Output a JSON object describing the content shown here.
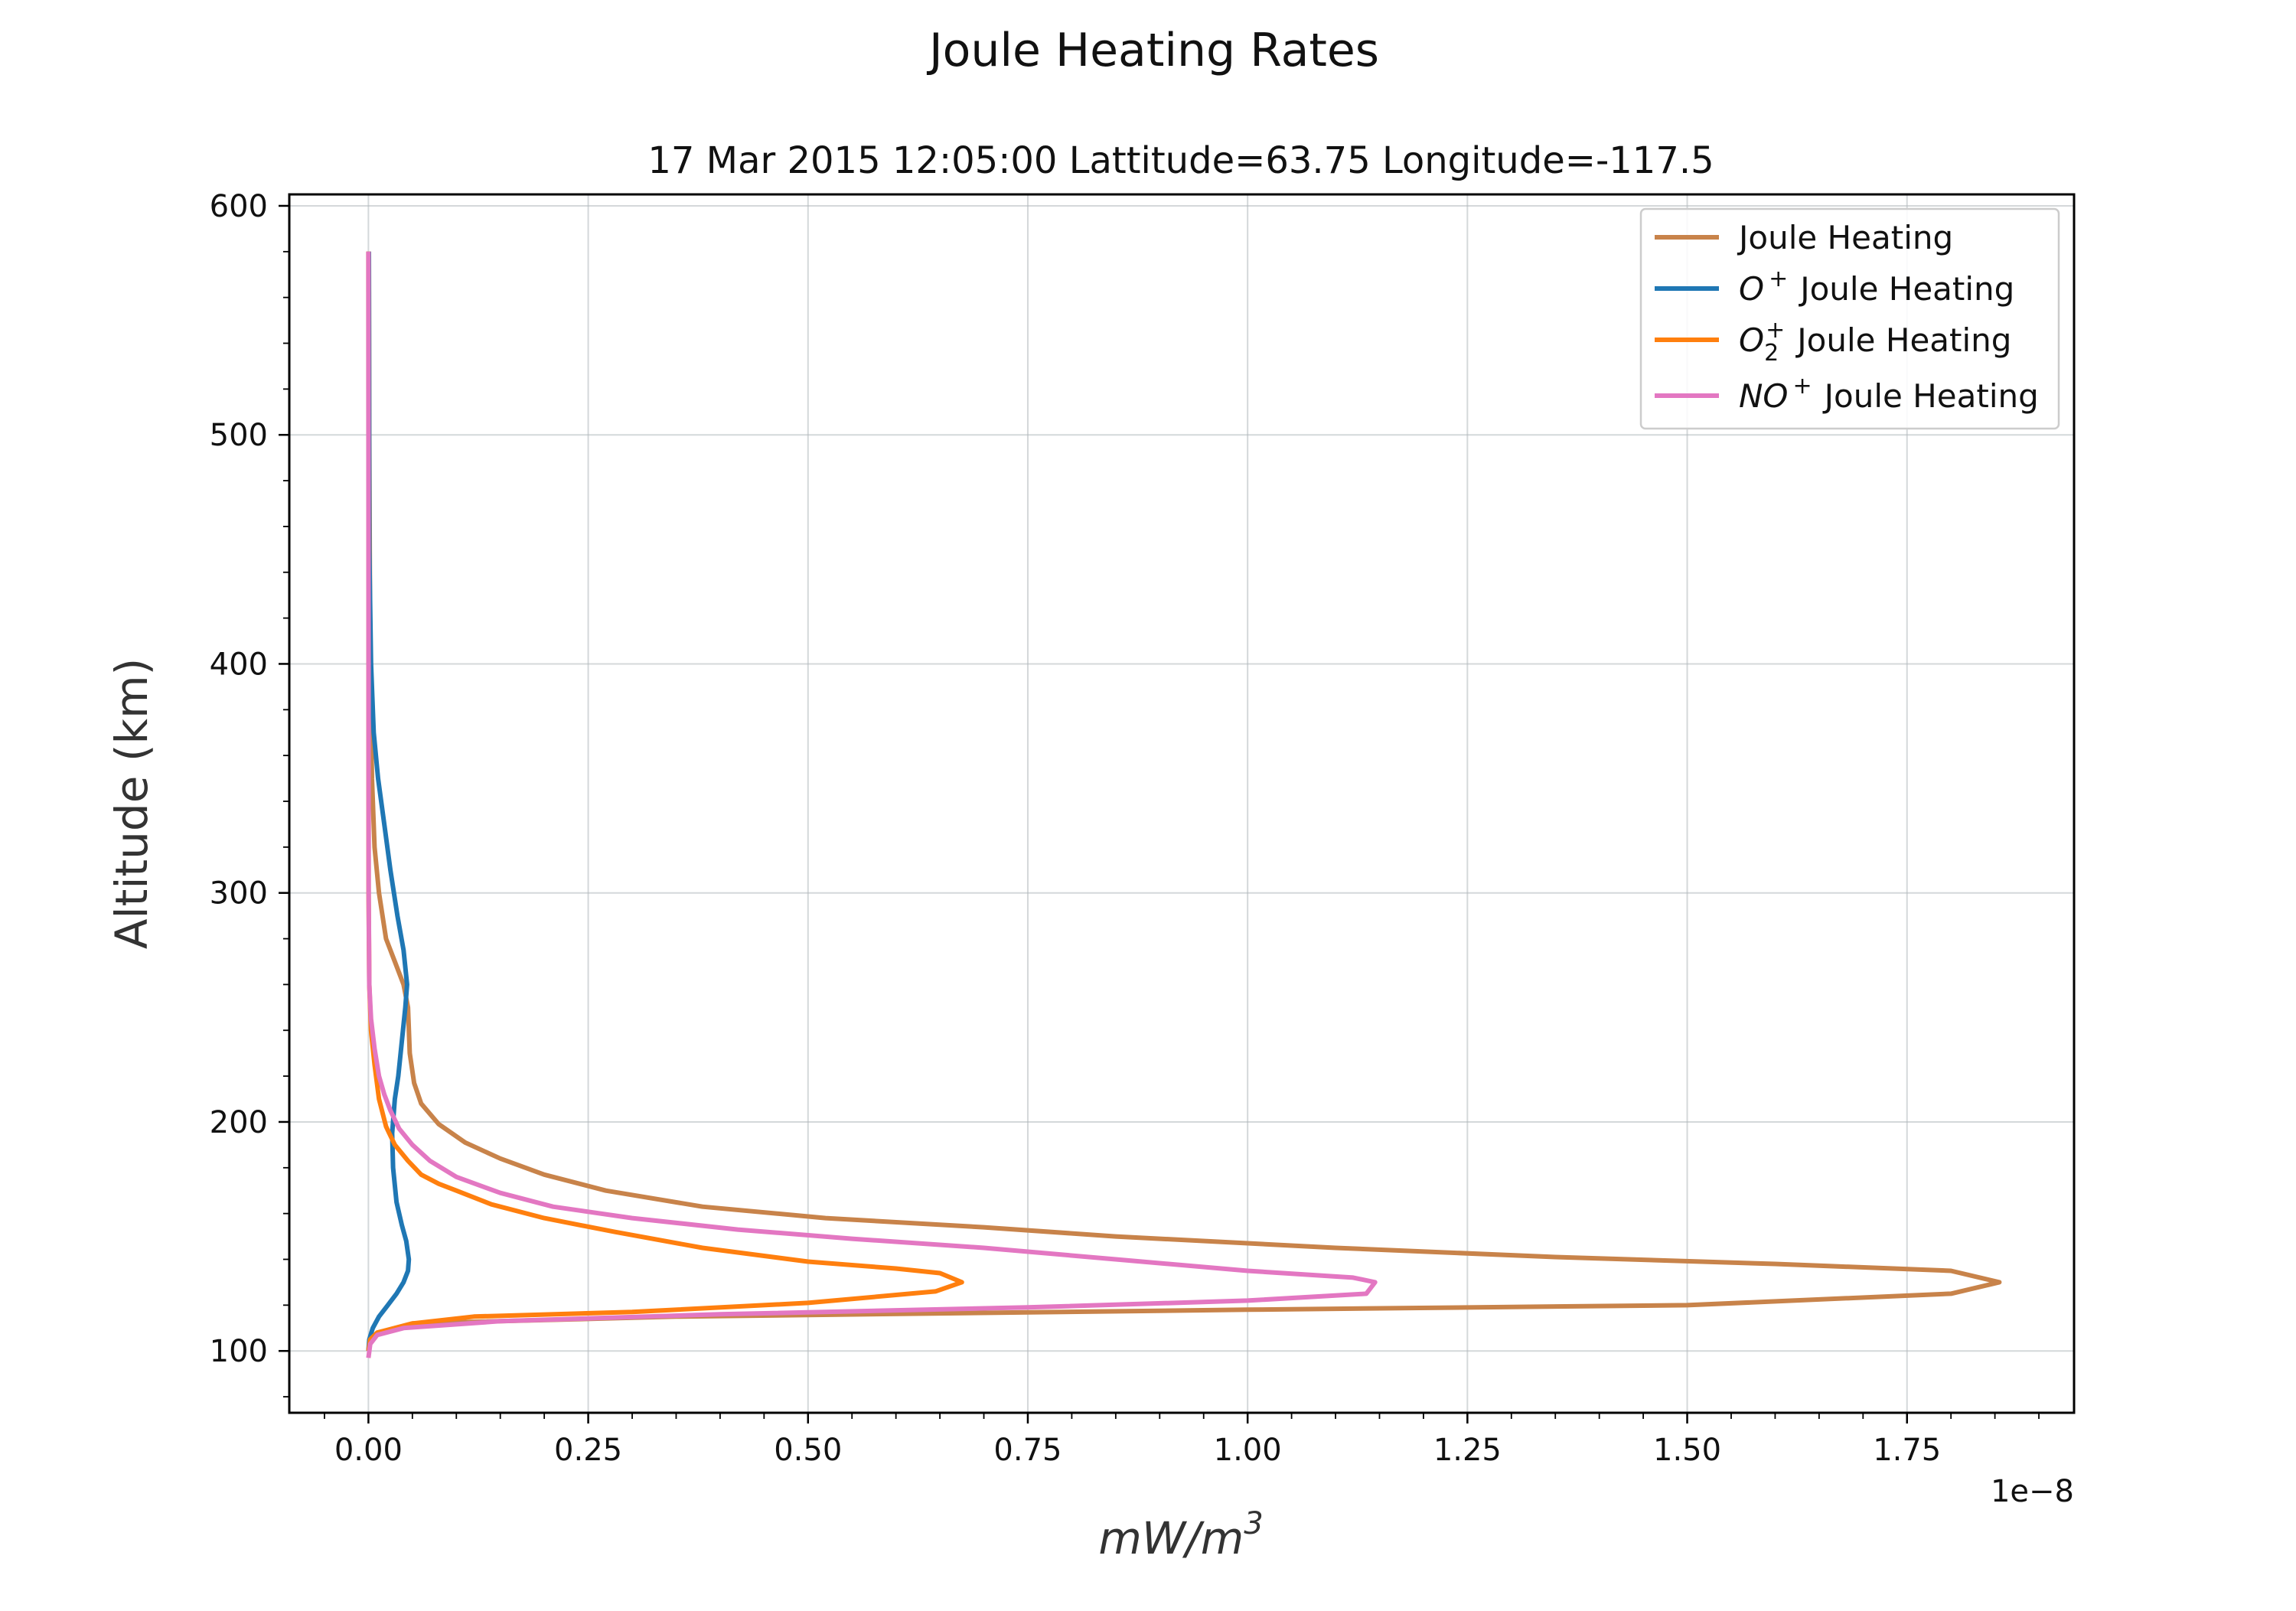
{
  "chart_data": {
    "type": "line",
    "title": "Joule Heating Rates",
    "subtitle": "17 Mar 2015 12:05:00 Lattitude=63.75 Longitude=-117.5",
    "ylabel": "Altitude (km)",
    "xlabel": "mW/m",
    "xlabel_sup": "3",
    "x_offset_label": "1e−8",
    "x_scale": 1e-08,
    "xlim": [
      -0.09,
      1.94
    ],
    "ylim": [
      73,
      605
    ],
    "xticks": [
      0.0,
      0.25,
      0.5,
      0.75,
      1.0,
      1.25,
      1.5,
      1.75
    ],
    "xtick_labels": [
      "0.00",
      "0.25",
      "0.50",
      "0.75",
      "1.00",
      "1.25",
      "1.50",
      "1.75"
    ],
    "yticks": [
      100,
      200,
      300,
      400,
      500,
      600
    ],
    "ytick_labels": [
      "100",
      "200",
      "300",
      "400",
      "500",
      "600"
    ],
    "grid": true,
    "legend_position": "top-right",
    "series": [
      {
        "name": "Joule Heating",
        "color": "#c8834a",
        "x": [
          0.0,
          0.002,
          0.01,
          0.05,
          0.35,
          1.0,
          1.5,
          1.8,
          1.855,
          1.8,
          1.6,
          1.35,
          1.1,
          0.85,
          0.7,
          0.52,
          0.38,
          0.27,
          0.2,
          0.15,
          0.11,
          0.08,
          0.06,
          0.052,
          0.047,
          0.045,
          0.04,
          0.03,
          0.02,
          0.012,
          0.007,
          0.004,
          0.002,
          0.001,
          0.0005
        ],
        "y": [
          100,
          105,
          108,
          112,
          115,
          118,
          120,
          125,
          130,
          135,
          138,
          141,
          145,
          150,
          154,
          158,
          163,
          170,
          177,
          184,
          191,
          199,
          208,
          217,
          230,
          250,
          260,
          270,
          280,
          300,
          320,
          350,
          400,
          500,
          580
        ]
      },
      {
        "name": "$O^+$ Joule Heating",
        "legend_base": "O",
        "legend_sup": "+",
        "legend_text": "Joule Heating",
        "color": "#1f77b4",
        "x": [
          0.0,
          0.001,
          0.005,
          0.012,
          0.022,
          0.032,
          0.04,
          0.045,
          0.046,
          0.043,
          0.038,
          0.032,
          0.028,
          0.027,
          0.03,
          0.034,
          0.038,
          0.042,
          0.044,
          0.04,
          0.033,
          0.025,
          0.018,
          0.011,
          0.006,
          0.003,
          0.001,
          0.0005
        ],
        "y": [
          100,
          105,
          110,
          115,
          120,
          125,
          130,
          135,
          140,
          148,
          155,
          165,
          180,
          195,
          210,
          220,
          235,
          250,
          260,
          275,
          290,
          310,
          330,
          350,
          370,
          400,
          450,
          580
        ]
      },
      {
        "name": "$O_2^+$ Joule Heating",
        "legend_base": "O",
        "legend_sub": "2",
        "legend_sup": "+",
        "legend_text": "Joule Heating",
        "color": "#ff7f0e",
        "x": [
          0.0,
          0.002,
          0.01,
          0.05,
          0.12,
          0.3,
          0.5,
          0.645,
          0.675,
          0.65,
          0.6,
          0.5,
          0.38,
          0.28,
          0.2,
          0.14,
          0.1,
          0.08,
          0.06,
          0.045,
          0.03,
          0.02,
          0.012,
          0.007,
          0.003,
          0.001,
          0.0002,
          0.0
        ],
        "y": [
          100,
          105,
          108,
          112,
          115,
          117,
          121,
          126,
          130,
          134,
          136,
          139,
          145,
          152,
          158,
          164,
          170,
          173,
          177,
          183,
          190,
          198,
          210,
          225,
          240,
          260,
          300,
          580
        ]
      },
      {
        "name": "$NO^+$ Joule Heating",
        "legend_base": "NO",
        "legend_sup": "+",
        "legend_text": "Joule Heating",
        "color": "#e377c2",
        "x": [
          0.0,
          0.002,
          0.01,
          0.04,
          0.15,
          0.4,
          0.75,
          1.0,
          1.135,
          1.145,
          1.12,
          1.0,
          0.85,
          0.7,
          0.55,
          0.42,
          0.3,
          0.21,
          0.15,
          0.1,
          0.07,
          0.05,
          0.035,
          0.025,
          0.018,
          0.012,
          0.007,
          0.003,
          0.001,
          0.0003,
          0.0
        ],
        "y": [
          97,
          103,
          107,
          110,
          113,
          116,
          119,
          122,
          125,
          130,
          132,
          135,
          140,
          145,
          149,
          153,
          158,
          163,
          169,
          176,
          183,
          190,
          197,
          205,
          212,
          220,
          232,
          245,
          260,
          300,
          580
        ]
      }
    ]
  }
}
